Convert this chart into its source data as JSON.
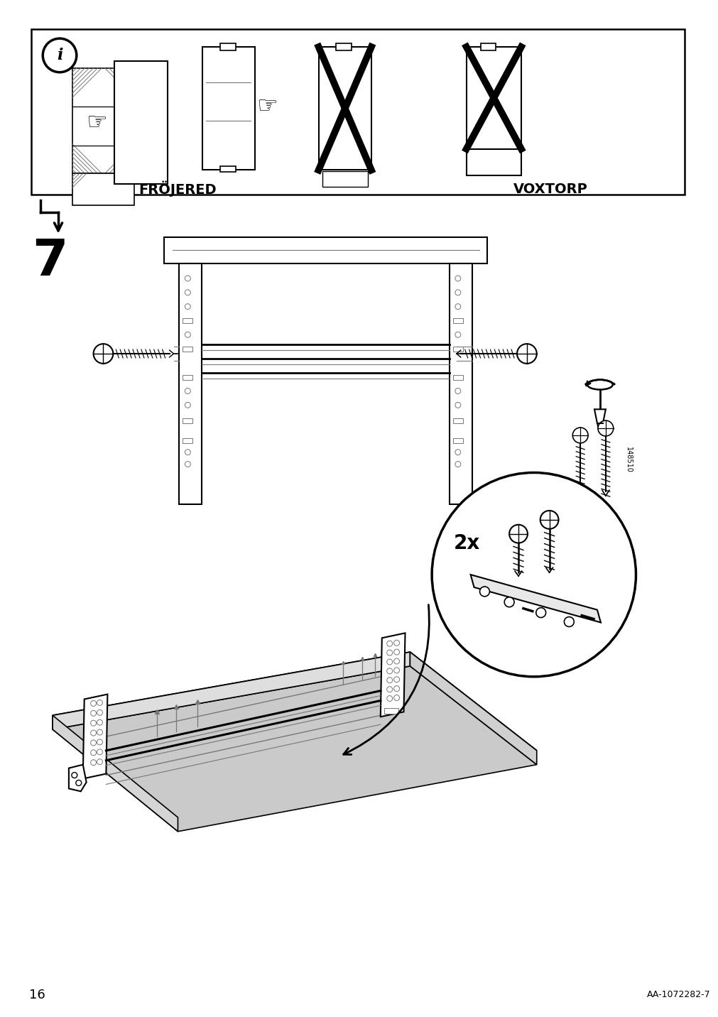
{
  "bg_color": "#ffffff",
  "line_color": "#000000",
  "gray_color": "#777777",
  "page_number": "16",
  "article_number": "AA-1072282-7",
  "step_number": "7",
  "label_frojered": "FRÖJERED",
  "label_voxtorp": "VOXTORP",
  "label_2x": "2x",
  "label_148510": "148510"
}
